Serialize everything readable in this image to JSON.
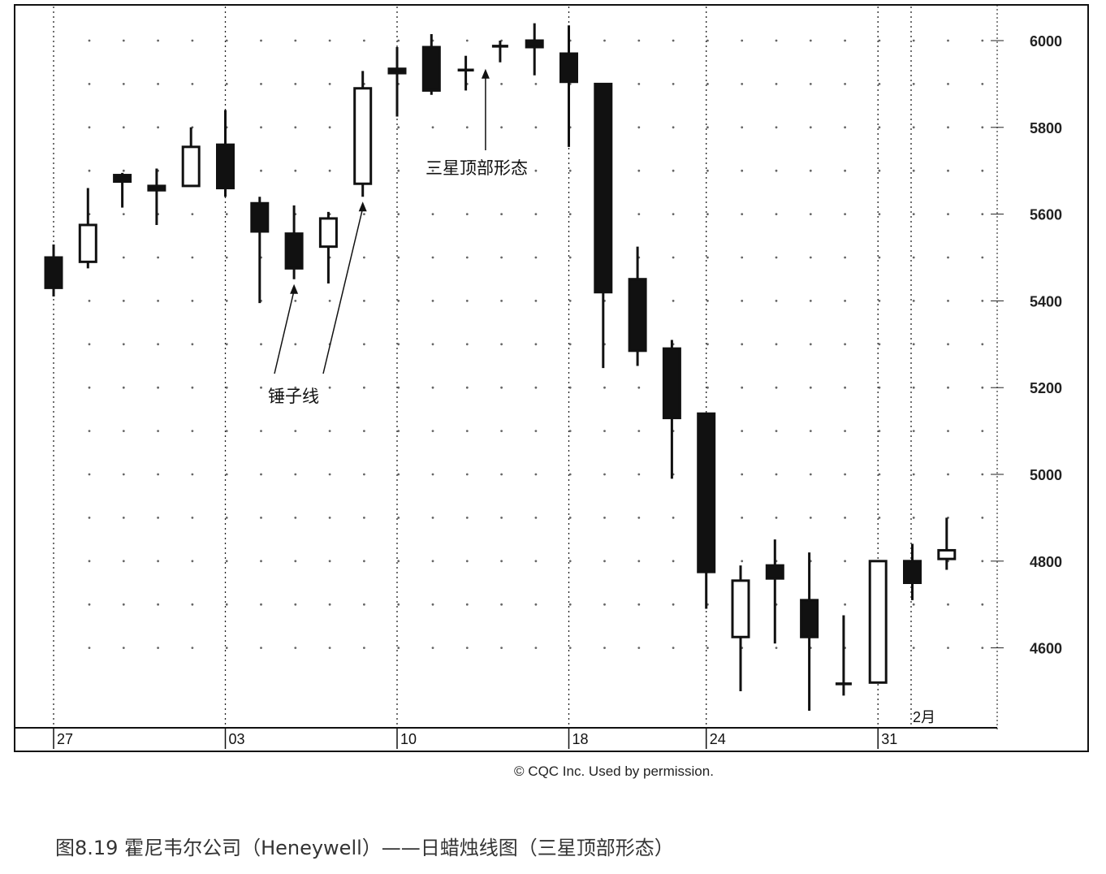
{
  "chart_data": {
    "type": "candlestick",
    "y_ticks": [
      "6000",
      "5800",
      "5600",
      "5400",
      "5200",
      "5000",
      "4800",
      "4600"
    ],
    "ylim": [
      4380,
      6120
    ],
    "x_date_labels": [
      "27",
      "03",
      "10",
      "18",
      "24",
      "31"
    ],
    "month_label": "2月",
    "grid": "dotted",
    "annotations": [
      {
        "text": "锤子线",
        "targets": [
          7,
          9
        ]
      },
      {
        "text": "三星顶部形态",
        "target": 13
      }
    ],
    "candles": [
      {
        "open": 5500,
        "high": 5530,
        "low": 5410,
        "close": 5430
      },
      {
        "open": 5490,
        "high": 5660,
        "low": 5475,
        "close": 5575
      },
      {
        "open": 5690,
        "high": 5695,
        "low": 5615,
        "close": 5675
      },
      {
        "open": 5665,
        "high": 5705,
        "low": 5575,
        "close": 5655
      },
      {
        "open": 5665,
        "high": 5800,
        "low": 5665,
        "close": 5755
      },
      {
        "open": 5760,
        "high": 5840,
        "low": 5640,
        "close": 5660
      },
      {
        "open": 5625,
        "high": 5640,
        "low": 5395,
        "close": 5560
      },
      {
        "open": 5555,
        "high": 5620,
        "low": 5450,
        "close": 5475
      },
      {
        "open": 5525,
        "high": 5605,
        "low": 5440,
        "close": 5590
      },
      {
        "open": 5670,
        "high": 5930,
        "low": 5640,
        "close": 5890
      },
      {
        "open": 5935,
        "high": 5985,
        "low": 5825,
        "close": 5925
      },
      {
        "open": 5985,
        "high": 6015,
        "low": 5875,
        "close": 5885
      },
      {
        "open": 5935,
        "high": 5965,
        "low": 5885,
        "close": 5930
      },
      {
        "open": 5990,
        "high": 6000,
        "low": 5950,
        "close": 5985
      },
      {
        "open": 6000,
        "high": 6040,
        "low": 5920,
        "close": 5985
      },
      {
        "open": 5970,
        "high": 6035,
        "low": 5755,
        "close": 5905
      },
      {
        "open": 5900,
        "high": 5900,
        "low": 5245,
        "close": 5420
      },
      {
        "open": 5450,
        "high": 5525,
        "low": 5250,
        "close": 5285
      },
      {
        "open": 5290,
        "high": 5310,
        "low": 4990,
        "close": 5130
      },
      {
        "open": 5140,
        "high": 5140,
        "low": 4690,
        "close": 4775
      },
      {
        "open": 4625,
        "high": 4790,
        "low": 4500,
        "close": 4755
      },
      {
        "open": 4790,
        "high": 4850,
        "low": 4610,
        "close": 4760
      },
      {
        "open": 4710,
        "high": 4820,
        "low": 4455,
        "close": 4625
      },
      {
        "open": 4520,
        "high": 4675,
        "low": 4490,
        "close": 4520
      },
      {
        "open": 4520,
        "high": 4800,
        "low": 4520,
        "close": 4800
      },
      {
        "open": 4800,
        "high": 4840,
        "low": 4710,
        "close": 4750
      },
      {
        "open": 4805,
        "high": 4900,
        "low": 4780,
        "close": 4825
      }
    ]
  },
  "copyright": "© CQC Inc. Used by permission.",
  "caption": "图8.19 霍尼韦尔公司（Heneywell）——日蜡烛线图（三星顶部形态）"
}
